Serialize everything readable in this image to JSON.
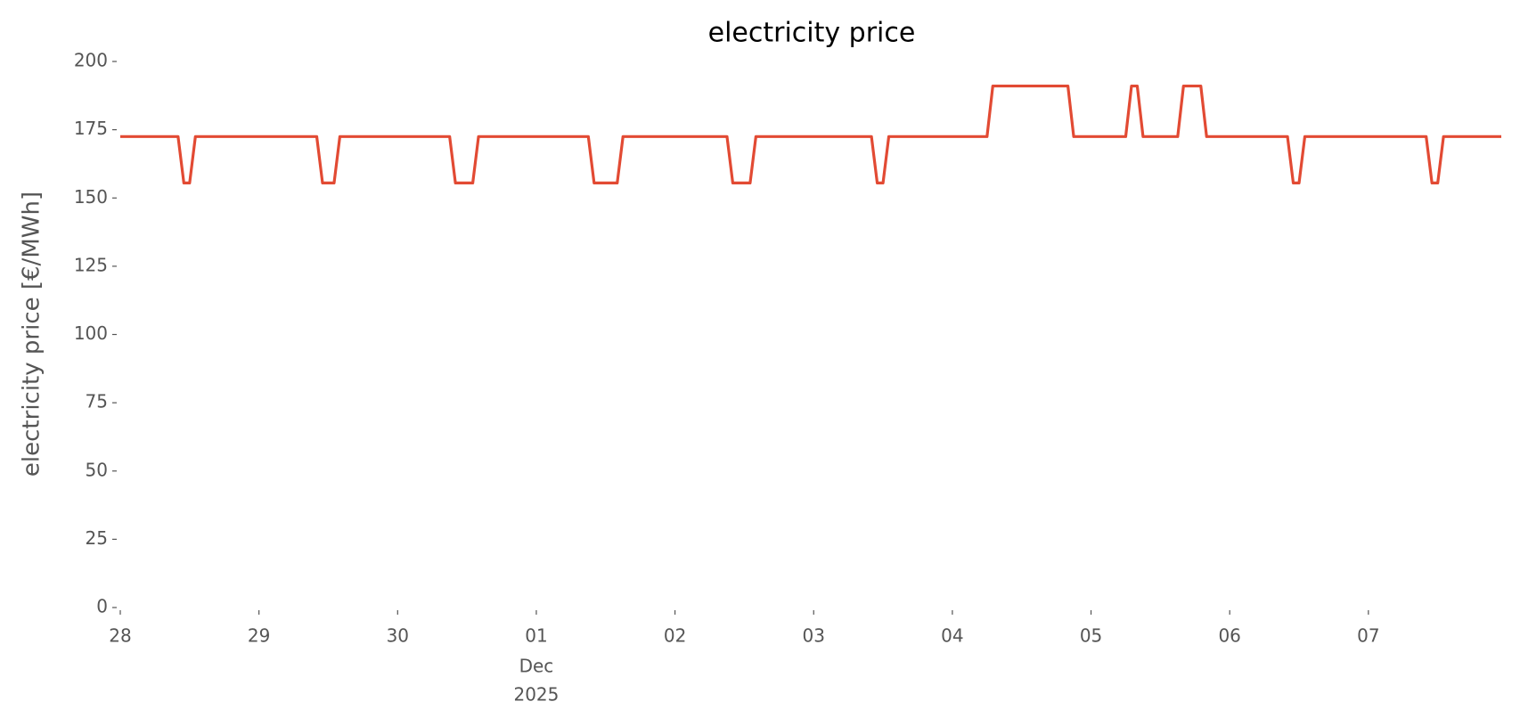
{
  "chart_data": {
    "type": "line",
    "title": "electricity price",
    "ylabel": "electricity price [€/MWh]",
    "x": [
      0,
      10,
      11,
      12,
      13,
      34,
      35,
      37,
      38,
      57,
      58,
      61,
      62,
      81,
      82,
      86,
      87,
      105,
      106,
      109,
      110,
      130,
      131,
      132,
      133,
      150,
      151,
      164,
      165,
      174,
      175,
      176,
      177,
      183,
      184,
      187,
      188,
      202,
      203,
      204,
      205,
      226,
      227,
      228,
      229,
      239
    ],
    "values": [
      172.5,
      172.5,
      155.5,
      155.5,
      172.5,
      172.5,
      155.5,
      155.5,
      172.5,
      172.5,
      155.5,
      155.5,
      172.5,
      172.5,
      155.5,
      155.5,
      172.5,
      172.5,
      155.5,
      155.5,
      172.5,
      172.5,
      155.5,
      155.5,
      172.5,
      172.5,
      191,
      191,
      172.5,
      172.5,
      191,
      191,
      172.5,
      172.5,
      191,
      191,
      172.5,
      172.5,
      155.5,
      155.5,
      172.5,
      172.5,
      155.5,
      155.5,
      172.5,
      172.5
    ],
    "color": "#e24a33",
    "xlim": [
      0,
      239
    ],
    "xticks": [
      {
        "value": 0,
        "label": "28"
      },
      {
        "value": 24,
        "label": "29"
      },
      {
        "value": 48,
        "label": "30"
      },
      {
        "value": 72,
        "label": "01"
      },
      {
        "value": 96,
        "label": "02"
      },
      {
        "value": 120,
        "label": "03"
      },
      {
        "value": 144,
        "label": "04"
      },
      {
        "value": 168,
        "label": "05"
      },
      {
        "value": 192,
        "label": "06"
      },
      {
        "value": 216,
        "label": "07"
      }
    ],
    "x_period_label": [
      "Dec",
      "2025"
    ],
    "ylim": [
      0,
      200
    ],
    "yticks": [
      0,
      25,
      50,
      75,
      100,
      125,
      150,
      175,
      200
    ],
    "grid": false
  }
}
